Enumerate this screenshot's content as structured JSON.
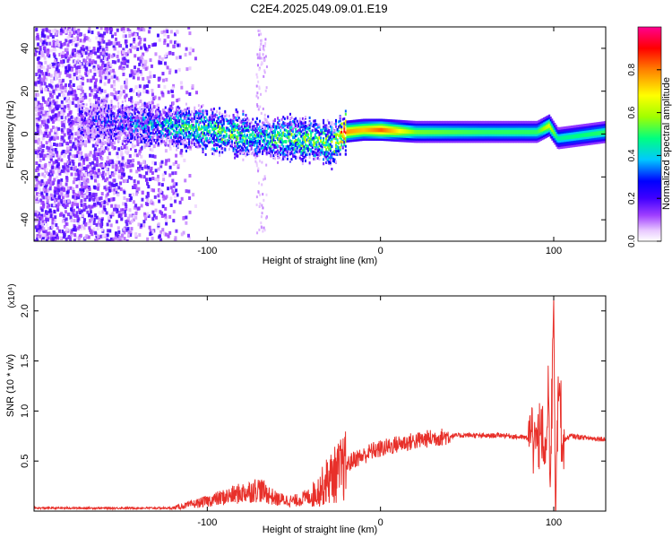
{
  "figure_title": "C2E4.2025.049.09.01.E19",
  "chart_data": [
    {
      "type": "heatmap",
      "title": "",
      "xlabel": "Height of straight line (km)",
      "ylabel": "Frequency (Hz)",
      "xlim": [
        -200,
        130
      ],
      "ylim": [
        -50,
        50
      ],
      "x_ticks": [
        -100,
        0,
        100
      ],
      "x_tick_labels": [
        "-100",
        "0",
        "100"
      ],
      "y_ticks": [
        -40,
        -20,
        0,
        20,
        40
      ],
      "y_tick_labels": [
        "-40",
        "-20",
        "0",
        "20",
        "40"
      ],
      "colorbar": {
        "label": "Normalized spectral amplitude",
        "range": [
          0,
          1
        ],
        "ticks": [
          0.0,
          0.2,
          0.4,
          0.6,
          0.8
        ],
        "tick_labels": [
          "0.0",
          "0.2",
          "0.4",
          "0.6",
          "0.8"
        ],
        "colors": [
          "#ffffff",
          "#e8c8ff",
          "#a040ff",
          "#4000ff",
          "#0000ff",
          "#00c8ff",
          "#00ff80",
          "#a0ff00",
          "#ffff00",
          "#ff8000",
          "#ff0000",
          "#ff0090"
        ]
      },
      "ridge": {
        "x": [
          -170,
          -150,
          -130,
          -110,
          -90,
          -70,
          -50,
          -35,
          -28,
          -22,
          -10,
          0,
          20,
          60,
          90,
          97,
          102,
          130
        ],
        "frequency": [
          6,
          5,
          4,
          3,
          1,
          -2,
          -2,
          -3,
          -5,
          1,
          2,
          2,
          1,
          1,
          1,
          4,
          -2,
          1
        ],
        "amplitude": [
          0.15,
          0.25,
          0.35,
          0.45,
          0.5,
          0.45,
          0.5,
          0.55,
          0.5,
          0.85,
          0.8,
          0.9,
          0.6,
          0.55,
          0.55,
          0.7,
          0.5,
          0.55
        ]
      }
    },
    {
      "type": "line",
      "title": "",
      "xlabel": "Height of straight line (km)",
      "ylabel": "SNR (10 * v/v)",
      "y_multiplier": "(x10⁴)",
      "xlim": [
        -200,
        130
      ],
      "ylim": [
        0,
        2.15
      ],
      "x_ticks": [
        -100,
        0,
        100
      ],
      "x_tick_labels": [
        "-100",
        "0",
        "100"
      ],
      "y_ticks": [
        0.5,
        1.0,
        1.5,
        2.0
      ],
      "y_tick_labels": [
        "0.5",
        "1.0",
        "1.5",
        "2.0"
      ],
      "color": "#e8302a",
      "series": [
        {
          "x": [
            -200,
            -160,
            -120,
            -105,
            -95,
            -80,
            -70,
            -60,
            -50,
            -40,
            -35,
            -30,
            -25,
            -20,
            -15,
            -10,
            -5,
            0,
            10,
            20,
            30,
            40,
            50,
            60,
            70,
            75,
            80,
            85,
            90,
            93,
            95,
            97,
            98,
            100,
            101,
            103,
            105,
            110,
            120,
            130
          ],
          "y": [
            0.03,
            0.03,
            0.03,
            0.08,
            0.12,
            0.18,
            0.22,
            0.12,
            0.1,
            0.15,
            0.22,
            0.32,
            0.38,
            0.45,
            0.52,
            0.55,
            0.6,
            0.62,
            0.67,
            0.7,
            0.73,
            0.75,
            0.76,
            0.75,
            0.76,
            0.75,
            0.74,
            0.73,
            0.7,
            0.8,
            0.5,
            1.1,
            0.2,
            2.15,
            0.15,
            1.4,
            0.7,
            0.75,
            0.73,
            0.72
          ]
        }
      ]
    }
  ]
}
